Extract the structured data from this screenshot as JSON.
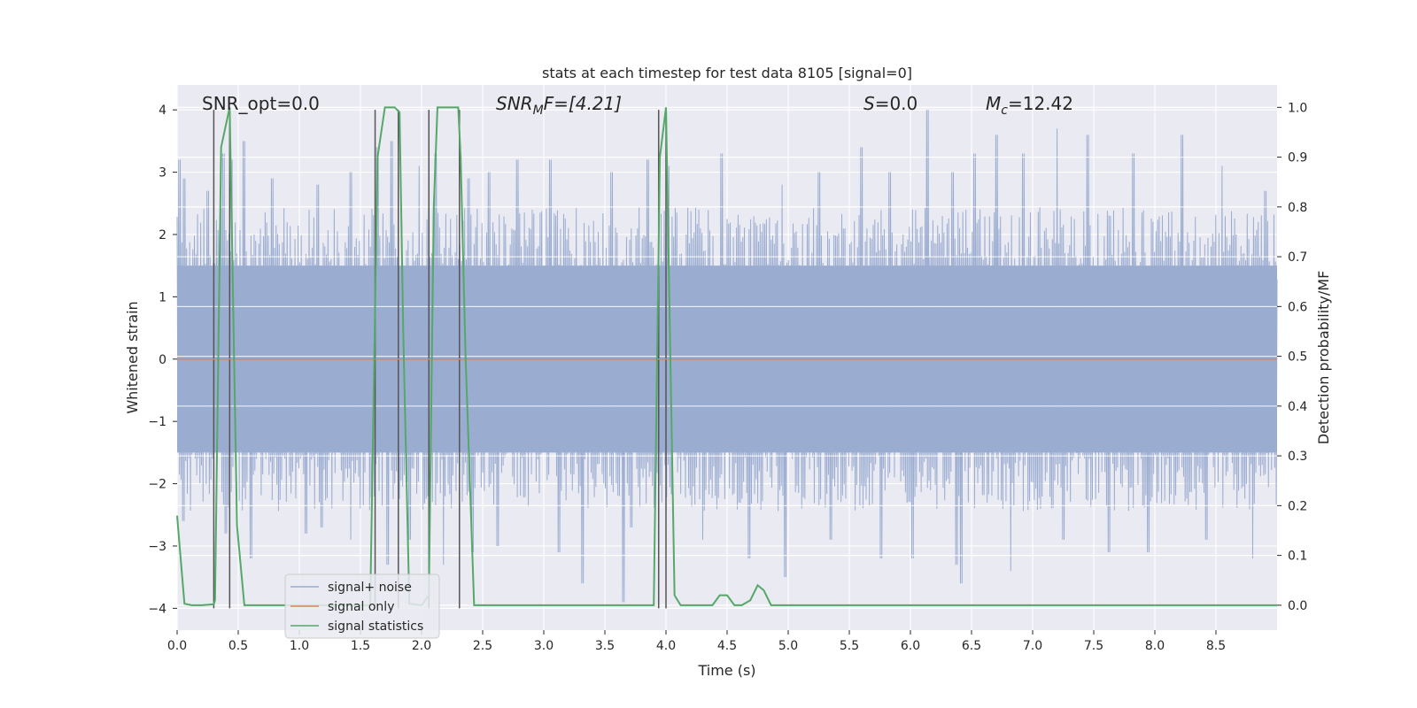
{
  "chart_data": {
    "type": "line",
    "title": "stats at each timestep for test data 8105 [signal=0]",
    "xlabel": "Time (s)",
    "ylabel": "Whitened strain",
    "ylabel_right": "Detection probability/MF",
    "xlim": [
      0.0,
      9.0
    ],
    "ylim": [
      -4.35,
      4.4
    ],
    "ylim_right": [
      -0.05,
      1.045
    ],
    "x_ticks": [
      0.0,
      0.5,
      1.0,
      1.5,
      2.0,
      2.5,
      3.0,
      3.5,
      4.0,
      4.5,
      5.0,
      5.5,
      6.0,
      6.5,
      7.0,
      7.5,
      8.0,
      8.5
    ],
    "x_tick_labels": [
      "0.0",
      "0.5",
      "1.0",
      "1.5",
      "2.0",
      "2.5",
      "3.0",
      "3.5",
      "4.0",
      "4.5",
      "5.0",
      "5.5",
      "6.0",
      "6.5",
      "7.0",
      "7.5",
      "8.0",
      "8.5"
    ],
    "y_ticks": [
      -4,
      -3,
      -2,
      -1,
      0,
      1,
      2,
      3,
      4
    ],
    "y_tick_labels": [
      "−4",
      "−3",
      "−2",
      "−1",
      "0",
      "1",
      "2",
      "3",
      "4"
    ],
    "y_ticks_right": [
      0.0,
      0.1,
      0.2,
      0.3,
      0.4,
      0.5,
      0.6,
      0.7,
      0.8,
      0.9,
      1.0
    ],
    "y_tick_labels_right": [
      "0.0",
      "0.1",
      "0.2",
      "0.3",
      "0.4",
      "0.5",
      "0.6",
      "0.7",
      "0.8",
      "0.9",
      "1.0"
    ],
    "grid": true,
    "legend_placement": "lower-left",
    "annotations": {
      "snr_opt": "SNR_opt=0.0",
      "snr_mf_base": "SNR",
      "snr_mf_sub": "M",
      "snr_mf_rest": "F=[4.21]",
      "s_italic": "S",
      "s_rest": "=0.0",
      "mc_base": "M",
      "mc_sub": "c",
      "mc_rest": "=12.42"
    },
    "series": [
      {
        "name": "signal+ noise",
        "color": "#9aacd0",
        "envelope": {
          "upper_typical": 1.6,
          "lower_typical": -1.6,
          "peak_times": [
            0.02,
            0.06,
            0.25,
            0.38,
            0.45,
            0.55,
            0.78,
            1.15,
            1.42,
            1.64,
            1.75,
            1.98,
            2.12,
            2.38,
            2.55,
            2.78,
            3.05,
            3.55,
            3.85,
            4.02,
            4.45,
            4.95,
            5.25,
            5.6,
            5.83,
            6.14,
            6.35,
            6.52,
            6.7,
            6.92,
            7.2,
            7.45,
            7.82,
            8.22,
            8.55,
            8.9
          ],
          "peak_values": [
            3.2,
            2.9,
            2.7,
            3.3,
            3.2,
            3.5,
            2.9,
            2.8,
            3.0,
            3.4,
            3.5,
            3.1,
            3.3,
            2.9,
            3.0,
            3.2,
            3.2,
            3.0,
            3.2,
            3.1,
            3.3,
            2.8,
            3.0,
            3.4,
            3.0,
            4.0,
            3.0,
            3.3,
            3.6,
            3.3,
            3.7,
            3.6,
            3.3,
            3.6,
            3.1,
            2.7
          ],
          "trough_times": [
            0.05,
            0.4,
            0.6,
            1.05,
            1.18,
            1.42,
            1.72,
            1.9,
            2.18,
            2.42,
            2.62,
            3.12,
            3.32,
            3.65,
            3.72,
            4.3,
            4.68,
            4.98,
            5.35,
            5.76,
            6.02,
            6.38,
            6.42,
            6.82,
            7.25,
            7.62,
            7.95,
            8.42,
            8.8
          ],
          "trough_values": [
            -2.6,
            -2.8,
            -3.2,
            -2.8,
            -2.7,
            -2.9,
            -3.3,
            -2.9,
            -3.3,
            -3.1,
            -3.0,
            -3.1,
            -3.6,
            -3.9,
            -2.7,
            -2.9,
            -3.2,
            -3.5,
            -2.9,
            -3.2,
            -3.2,
            -3.3,
            -3.6,
            -3.4,
            -2.9,
            -3.1,
            -3.1,
            -2.9,
            -3.2
          ]
        }
      },
      {
        "name": "signal only",
        "color": "#dd8452",
        "x": [
          0.0,
          9.0
        ],
        "y": [
          0.0,
          0.0
        ]
      },
      {
        "name": "signal statistics",
        "color": "#55a868",
        "axis": "right",
        "x": [
          0.0,
          0.02,
          0.06,
          0.12,
          0.2,
          0.3,
          0.31,
          0.36,
          0.43,
          0.49,
          0.55,
          0.6,
          1.58,
          1.64,
          1.7,
          1.78,
          1.82,
          1.85,
          1.9,
          2.0,
          2.06,
          2.1,
          2.13,
          2.3,
          2.32,
          2.36,
          2.43,
          3.9,
          3.95,
          4.0,
          4.07,
          4.12,
          4.38,
          4.44,
          4.5,
          4.56,
          4.62,
          4.69,
          4.75,
          4.8,
          4.86,
          4.95,
          9.0
        ],
        "y": [
          0.18,
          0.12,
          0.003,
          0.0,
          0.0,
          0.002,
          0.01,
          0.92,
          1.0,
          0.16,
          0.0,
          0.0,
          0.0,
          0.9,
          1.0,
          1.0,
          0.99,
          0.55,
          0.003,
          0.0,
          0.02,
          0.8,
          1.0,
          1.0,
          0.9,
          0.5,
          0.0,
          0.0,
          0.9,
          1.0,
          0.02,
          0.0,
          0.0,
          0.02,
          0.02,
          0.0,
          0.0,
          0.01,
          0.04,
          0.03,
          0.0,
          0.0,
          0.0
        ]
      }
    ],
    "vertical_markers": {
      "color": "#555555",
      "x": [
        0.3,
        0.43,
        1.62,
        1.81,
        2.06,
        2.31,
        3.94,
        4.0
      ]
    }
  }
}
